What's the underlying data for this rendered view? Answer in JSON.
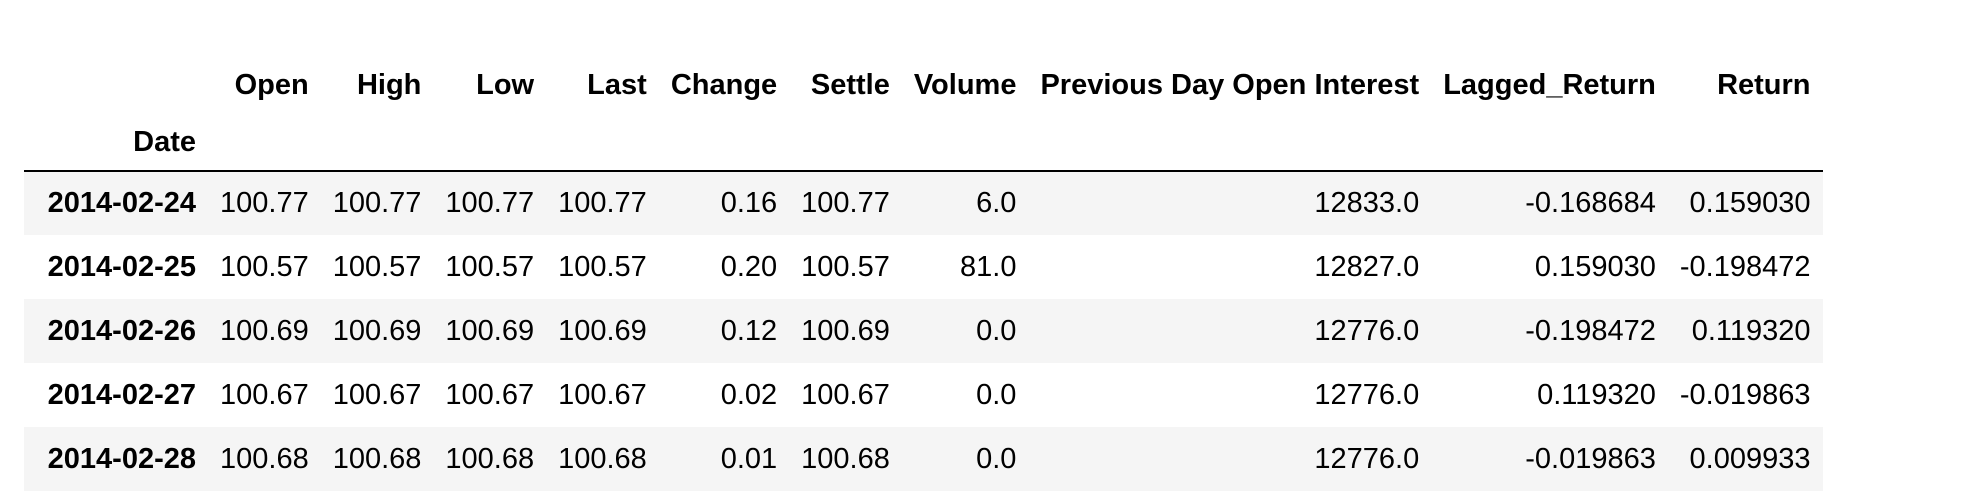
{
  "table": {
    "columns": [
      "Open",
      "High",
      "Low",
      "Last",
      "Change",
      "Settle",
      "Volume",
      "Previous Day Open Interest",
      "Lagged_Return",
      "Return"
    ],
    "index_name": "Date",
    "rows": [
      {
        "date": "2014-02-24",
        "cells": [
          "100.77",
          "100.77",
          "100.77",
          "100.77",
          "0.16",
          "100.77",
          "6.0",
          "12833.0",
          "-0.168684",
          "0.159030"
        ]
      },
      {
        "date": "2014-02-25",
        "cells": [
          "100.57",
          "100.57",
          "100.57",
          "100.57",
          "0.20",
          "100.57",
          "81.0",
          "12827.0",
          "0.159030",
          "-0.198472"
        ]
      },
      {
        "date": "2014-02-26",
        "cells": [
          "100.69",
          "100.69",
          "100.69",
          "100.69",
          "0.12",
          "100.69",
          "0.0",
          "12776.0",
          "-0.198472",
          "0.119320"
        ]
      },
      {
        "date": "2014-02-27",
        "cells": [
          "100.67",
          "100.67",
          "100.67",
          "100.67",
          "0.02",
          "100.67",
          "0.0",
          "12776.0",
          "0.119320",
          "-0.019863"
        ]
      },
      {
        "date": "2014-02-28",
        "cells": [
          "100.68",
          "100.68",
          "100.68",
          "100.68",
          "0.01",
          "100.68",
          "0.0",
          "12776.0",
          "-0.019863",
          "0.009933"
        ]
      }
    ]
  }
}
